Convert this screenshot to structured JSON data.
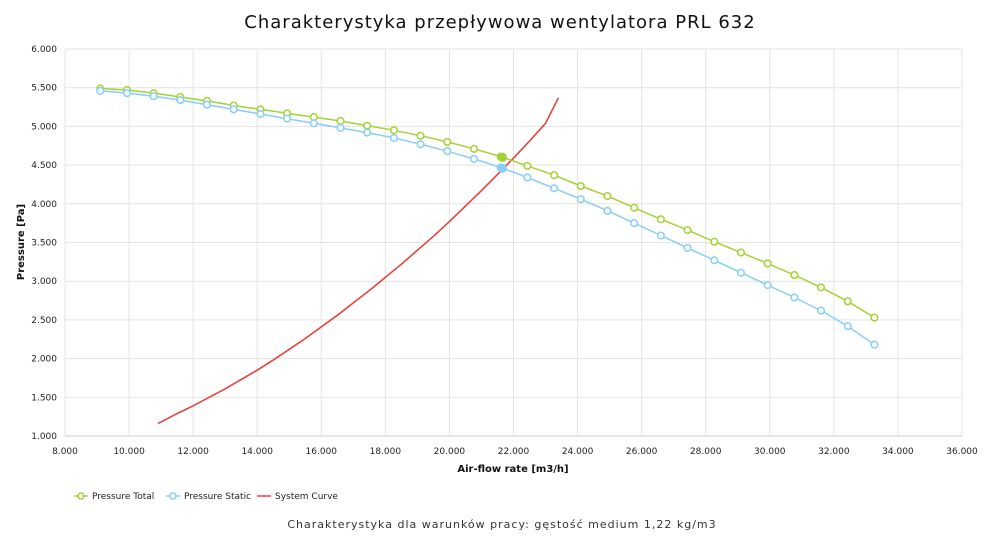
{
  "chart_data": {
    "type": "line",
    "title": "Charakterystyka przepływowa wentylatora PRL 632",
    "caption": "Charakterystyka dla warunków pracy: gęstość medium 1,22 kg/m3",
    "xlabel": "Air-flow rate [m3/h]",
    "ylabel": "Pressure [Pa]",
    "xlim": [
      8000,
      36000
    ],
    "ylim": [
      1000,
      6000
    ],
    "x_ticks": [
      8000,
      10000,
      12000,
      14000,
      16000,
      18000,
      20000,
      22000,
      24000,
      26000,
      28000,
      30000,
      32000,
      34000,
      36000
    ],
    "x_tick_labels": [
      "8.000",
      "10.000",
      "12.000",
      "14.000",
      "16.000",
      "18.000",
      "20.000",
      "22.000",
      "24.000",
      "26.000",
      "28.000",
      "30.000",
      "32.000",
      "34.000",
      "36.000"
    ],
    "y_ticks": [
      1000,
      1500,
      2000,
      2500,
      3000,
      3500,
      4000,
      4500,
      5000,
      5500,
      6000
    ],
    "y_tick_labels": [
      "1.000",
      "1.500",
      "2.000",
      "2.500",
      "3.000",
      "3.500",
      "4.000",
      "4.500",
      "5.000",
      "5.500",
      "6.000"
    ],
    "grid": true,
    "legend_position": "bottom-left",
    "series": [
      {
        "name": "Pressure Total",
        "color": "#a4d233",
        "marker": "circle",
        "x": [
          9100,
          9933,
          10767,
          11600,
          12433,
          13267,
          14100,
          14933,
          15767,
          16600,
          17433,
          18267,
          19100,
          19933,
          20767,
          21600,
          22433,
          23267,
          24100,
          24933,
          25767,
          26600,
          27433,
          28267,
          29100,
          29933,
          30767,
          31600,
          32433,
          33267
        ],
        "y": [
          5490,
          5470,
          5430,
          5380,
          5330,
          5270,
          5220,
          5170,
          5120,
          5070,
          5010,
          4950,
          4880,
          4800,
          4710,
          4610,
          4490,
          4370,
          4230,
          4100,
          3950,
          3800,
          3660,
          3510,
          3370,
          3230,
          3080,
          2920,
          2740,
          2530
        ]
      },
      {
        "name": "Pressure Static",
        "color": "#87cff5",
        "marker": "circle",
        "x": [
          9100,
          9933,
          10767,
          11600,
          12433,
          13267,
          14100,
          14933,
          15767,
          16600,
          17433,
          18267,
          19100,
          19933,
          20767,
          21600,
          22433,
          23267,
          24100,
          24933,
          25767,
          26600,
          27433,
          28267,
          29100,
          29933,
          30767,
          31600,
          32433,
          33267
        ],
        "y": [
          5460,
          5430,
          5390,
          5340,
          5280,
          5220,
          5160,
          5100,
          5040,
          4980,
          4920,
          4850,
          4770,
          4680,
          4580,
          4470,
          4340,
          4200,
          4060,
          3910,
          3750,
          3590,
          3430,
          3270,
          3110,
          2950,
          2790,
          2620,
          2420,
          2180
        ]
      },
      {
        "name": "System Curve",
        "color": "#e8413c",
        "marker": "none",
        "x": [
          10900,
          11500,
          12000,
          12500,
          13000,
          13500,
          14000,
          14500,
          15000,
          15500,
          16000,
          16500,
          17000,
          17500,
          18000,
          18500,
          19000,
          19500,
          20000,
          20500,
          21000,
          21500,
          22000,
          22500,
          23000,
          23400
        ],
        "y": [
          1160,
          1290,
          1390,
          1500,
          1610,
          1730,
          1850,
          1980,
          2120,
          2260,
          2410,
          2560,
          2720,
          2880,
          3050,
          3220,
          3400,
          3580,
          3770,
          3970,
          4170,
          4380,
          4590,
          4810,
          5040,
          5370
        ]
      }
    ],
    "operating_point": {
      "x": 21650,
      "total": 4600,
      "static": 4460
    }
  }
}
